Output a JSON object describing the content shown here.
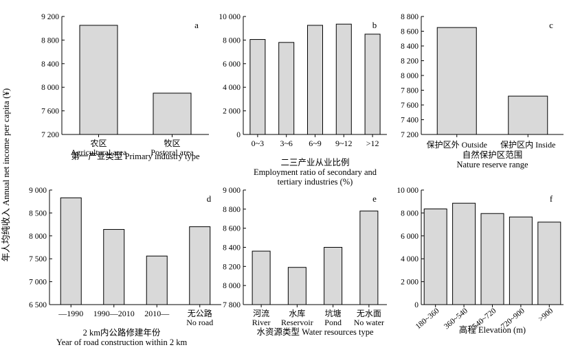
{
  "figure": {
    "ylabel": "年人均纯收入 Annual net income per capita (¥)"
  },
  "chart_data": [
    {
      "type": "bar",
      "panel_label": "a",
      "categories": [
        [
          "农区",
          "Agricultural area"
        ],
        [
          "牧区",
          "Postoral area"
        ]
      ],
      "values": [
        9050,
        7900
      ],
      "ylim": [
        7200,
        9200
      ],
      "yticks": [
        7200,
        7600,
        8000,
        8400,
        8800,
        9200
      ],
      "ytick_labels": [
        "7 200",
        "7 600",
        "8 000",
        "8 400",
        "8 800",
        "9 200"
      ],
      "xlabel": [
        "第一产业类型 Primary industry type"
      ],
      "bar_color": "#d9d9d9"
    },
    {
      "type": "bar",
      "panel_label": "b",
      "categories": [
        [
          "0~3"
        ],
        [
          "3~6"
        ],
        [
          "6~9"
        ],
        [
          "9~12"
        ],
        [
          ">12"
        ]
      ],
      "values": [
        8050,
        7800,
        9250,
        9350,
        8500
      ],
      "ylim": [
        0,
        10000
      ],
      "yticks": [
        0,
        2000,
        4000,
        6000,
        8000,
        10000
      ],
      "ytick_labels": [
        "0",
        "2 000",
        "4 000",
        "6 000",
        "8 000",
        "10 000"
      ],
      "xlabel": [
        "二三产业从业比例",
        "Employment ratio of secondary and",
        "tertiary industries (%)"
      ],
      "bar_color": "#d9d9d9"
    },
    {
      "type": "bar",
      "panel_label": "c",
      "categories": [
        [
          "保护区外 Outside"
        ],
        [
          "保护区内 Inside"
        ]
      ],
      "values": [
        8650,
        7720
      ],
      "ylim": [
        7200,
        8800
      ],
      "yticks": [
        7200,
        7400,
        7600,
        7800,
        8000,
        8200,
        8400,
        8600,
        8800
      ],
      "ytick_labels": [
        "7 200",
        "7 400",
        "7 600",
        "7 800",
        "8 000",
        "8 200",
        "8 400",
        "8 600",
        "8 800"
      ],
      "xlabel": [
        "自然保护区范围",
        "Nature reserve range"
      ],
      "bar_color": "#d9d9d9"
    },
    {
      "type": "bar",
      "panel_label": "d",
      "categories": [
        [
          "—1990"
        ],
        [
          "1990—2010"
        ],
        [
          "2010—"
        ],
        [
          "无公路",
          "No road"
        ]
      ],
      "values": [
        8830,
        8140,
        7560,
        8200
      ],
      "ylim": [
        6500,
        9000
      ],
      "yticks": [
        6500,
        7000,
        7500,
        8000,
        8500,
        9000
      ],
      "ytick_labels": [
        "6 500",
        "7 000",
        "7 500",
        "8 000",
        "8 500",
        "9 000"
      ],
      "xlabel": [
        "2 km内公路修建年份",
        "Year of road construction within 2 km"
      ],
      "bar_color": "#d9d9d9"
    },
    {
      "type": "bar",
      "panel_label": "e",
      "categories": [
        [
          "河流",
          "River"
        ],
        [
          "水库",
          "Reservoir"
        ],
        [
          "坑塘",
          "Pond"
        ],
        [
          "无水面",
          "No water"
        ]
      ],
      "values": [
        8360,
        8190,
        8400,
        8780
      ],
      "ylim": [
        7800,
        9000
      ],
      "yticks": [
        7800,
        8000,
        8200,
        8400,
        8600,
        8800,
        9000
      ],
      "ytick_labels": [
        "7 800",
        "8 000",
        "8 200",
        "8 400",
        "8 600",
        "8 800",
        "9 000"
      ],
      "xlabel": [
        "水资源类型 Water resources type"
      ],
      "bar_color": "#d9d9d9"
    },
    {
      "type": "bar",
      "panel_label": "f",
      "categories": [
        [
          "180~360"
        ],
        [
          "360~540"
        ],
        [
          "540~720"
        ],
        [
          "720~900"
        ],
        [
          ">900"
        ]
      ],
      "values": [
        8350,
        8850,
        7950,
        7650,
        7200
      ],
      "ylim": [
        0,
        10000
      ],
      "yticks": [
        0,
        2000,
        4000,
        6000,
        8000,
        10000
      ],
      "ytick_labels": [
        "0",
        "2 000",
        "4 000",
        "6 000",
        "8 000",
        "10 000"
      ],
      "xlabel": [
        "高程 Elevation (m)"
      ],
      "bar_color": "#d9d9d9",
      "rotate_category_labels": true
    }
  ]
}
